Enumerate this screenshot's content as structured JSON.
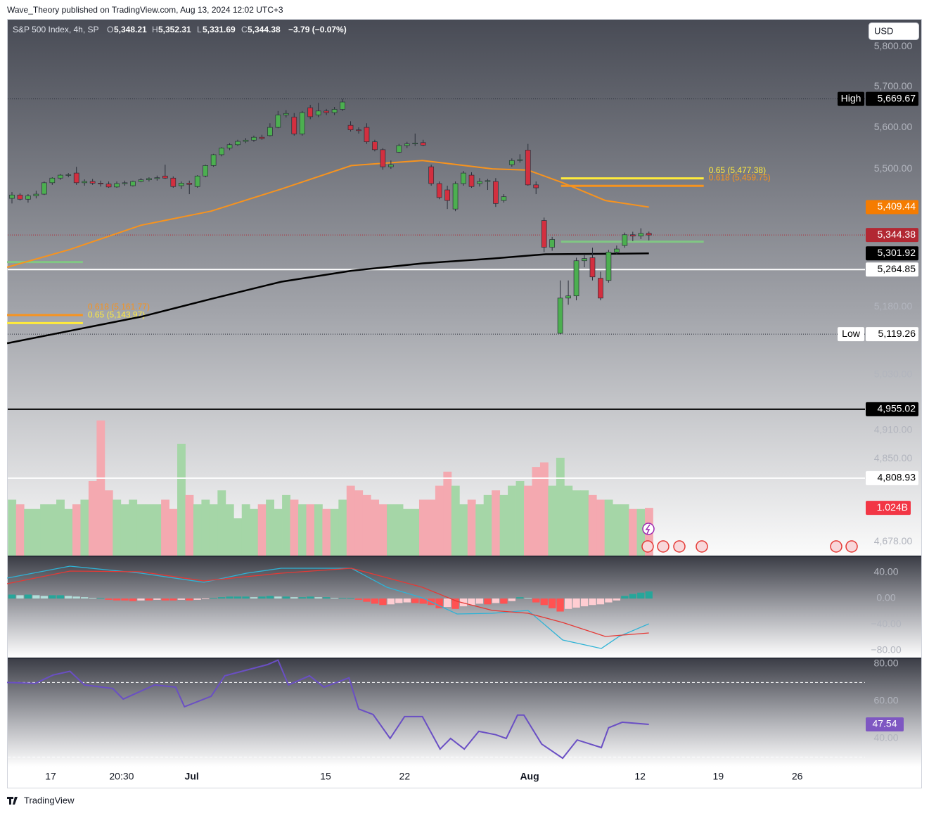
{
  "header": {
    "attribution": "Wave_Theory published on TradingView.com, Aug 13, 2024 12:02 UTC+3"
  },
  "footer": {
    "brand": "TradingView"
  },
  "currency_button": "USD",
  "chart_data": {
    "type": "candlestick",
    "title": "S&P 500 Index, 4h, SP",
    "legend": {
      "o": "O",
      "open": "5,348.21",
      "h": "H",
      "high": "5,352.31",
      "l": "L",
      "low": "5,331.69",
      "c": "C",
      "close": "5,344.38",
      "change": "−3.79 (−0.07%)"
    },
    "up_color": "#4caf50",
    "down_color": "#d32f3f",
    "wick_color": "#2a2e39",
    "xlim": [
      -0.61,
      105.8
    ],
    "xticks": [
      {
        "value": 4.8,
        "label": "17"
      },
      {
        "value": 13.6,
        "label": "20:30"
      },
      {
        "value": 22.3,
        "label": "Jul"
      },
      {
        "value": 38.9,
        "label": "15"
      },
      {
        "value": 48.7,
        "label": "22"
      },
      {
        "value": 64.2,
        "label": "Aug"
      },
      {
        "value": 77.9,
        "label": "12"
      },
      {
        "value": 87.6,
        "label": "19"
      },
      {
        "value": 97.4,
        "label": "26"
      }
    ],
    "ylim": [
      4650,
      5868
    ],
    "log_scale": true,
    "yticks": [
      {
        "value": 5800,
        "label": "5,800.00"
      },
      {
        "value": 5700,
        "label": "5,700.00"
      },
      {
        "value": 5600,
        "label": "5,600.00"
      },
      {
        "value": 5500,
        "label": "5,500.00"
      },
      {
        "value": 5180,
        "label": "5,180.00"
      },
      {
        "value": 5030,
        "label": "5,030.00"
      },
      {
        "value": 4910,
        "label": "4,910.00"
      },
      {
        "value": 4850,
        "label": "4,850.00"
      },
      {
        "value": 4678,
        "label": "4,678.00"
      }
    ],
    "candles": {
      "open": [
        5430,
        5438,
        5428,
        5436,
        5440,
        5467,
        5478,
        5485,
        5490,
        5467,
        5470,
        5466,
        5464,
        5457,
        5465,
        5460,
        5470,
        5474,
        5477,
        5483,
        5478,
        5460,
        5466,
        5458,
        5483,
        5508,
        5534,
        5550,
        5558,
        5566,
        5569,
        5576,
        5580,
        5600,
        5630,
        5625,
        5584,
        5648,
        5630,
        5640,
        5636,
        5644,
        5605,
        5594,
        5600,
        5565,
        5546,
        5505,
        5540,
        5556,
        5560,
        5563,
        5505,
        5465,
        5450,
        5405,
        5465,
        5485,
        5465,
        5470,
        5470,
        5425,
        5510,
        5520,
        5545,
        5462,
        5378,
        5316,
        5121,
        5200,
        5205,
        5285,
        5292,
        5245,
        5240,
        5305,
        5320,
        5345,
        5342,
        5348.21
      ],
      "high": [
        5445,
        5442,
        5440,
        5448,
        5470,
        5480,
        5488,
        5490,
        5505,
        5475,
        5476,
        5472,
        5470,
        5470,
        5472,
        5472,
        5478,
        5480,
        5484,
        5510,
        5482,
        5470,
        5472,
        5485,
        5510,
        5536,
        5552,
        5562,
        5570,
        5574,
        5580,
        5582,
        5610,
        5640,
        5642,
        5635,
        5640,
        5655,
        5660,
        5645,
        5650,
        5669.67,
        5615,
        5600,
        5610,
        5570,
        5550,
        5520,
        5560,
        5565,
        5585,
        5570,
        5510,
        5470,
        5460,
        5470,
        5495,
        5492,
        5478,
        5476,
        5478,
        5440,
        5525,
        5535,
        5560,
        5470,
        5385,
        5340,
        5240,
        5240,
        5292,
        5300,
        5315,
        5260,
        5310,
        5320,
        5350,
        5352,
        5360,
        5352.31
      ],
      "low": [
        5418,
        5425,
        5420,
        5430,
        5438,
        5462,
        5474,
        5480,
        5462,
        5460,
        5462,
        5458,
        5455,
        5455,
        5460,
        5458,
        5468,
        5470,
        5472,
        5476,
        5455,
        5452,
        5440,
        5455,
        5480,
        5505,
        5530,
        5545,
        5555,
        5562,
        5565,
        5570,
        5578,
        5598,
        5624,
        5580,
        5580,
        5620,
        5625,
        5630,
        5630,
        5640,
        5590,
        5585,
        5560,
        5542,
        5498,
        5500,
        5538,
        5550,
        5555,
        5555,
        5460,
        5428,
        5405,
        5400,
        5460,
        5455,
        5458,
        5450,
        5410,
        5420,
        5505,
        5515,
        5460,
        5440,
        5305,
        5308,
        5119.26,
        5185,
        5195,
        5270,
        5240,
        5195,
        5235,
        5300,
        5315,
        5330,
        5335,
        5331.69
      ],
      "close": [
        5438,
        5428,
        5436,
        5440,
        5467,
        5478,
        5485,
        5486,
        5467,
        5470,
        5466,
        5464,
        5457,
        5465,
        5467,
        5470,
        5474,
        5477,
        5479,
        5478,
        5458,
        5466,
        5463,
        5483,
        5508,
        5534,
        5550,
        5558,
        5566,
        5569,
        5576,
        5573,
        5600,
        5630,
        5634,
        5584,
        5636,
        5626,
        5640,
        5636,
        5644,
        5662,
        5594,
        5592,
        5565,
        5546,
        5505,
        5510,
        5556,
        5560,
        5562,
        5557,
        5465,
        5432,
        5425,
        5465,
        5490,
        5458,
        5470,
        5472,
        5418,
        5434,
        5520,
        5522,
        5462,
        5455,
        5316,
        5334,
        5200,
        5205,
        5285,
        5290,
        5248,
        5200,
        5305,
        5312,
        5345,
        5342,
        5348,
        5344.38
      ]
    },
    "overlays": [
      {
        "color": "#f7931e",
        "x": [
          -0.6,
          7.2,
          16.0,
          24.7,
          33.4,
          42.1,
          50.9,
          59.6,
          64.0,
          68.3,
          73.6,
          79
        ],
        "values": [
          5270,
          5311,
          5367,
          5400,
          5452,
          5508,
          5520,
          5500,
          5497,
          5467,
          5425,
          5409.44
        ]
      },
      {
        "color": "#000000",
        "x": [
          -0.6,
          16.0,
          24.7,
          33.4,
          42.1,
          50.9,
          59.6,
          66.2,
          79
        ],
        "values": [
          5099,
          5158,
          5198,
          5237,
          5262,
          5279,
          5290,
          5300,
          5301.92
        ]
      }
    ],
    "fib_levels": [
      {
        "value": 5477.38,
        "label": "0.65 (5,477.38)",
        "color": "#ffeb3b",
        "x": [
          68.1,
          85.8
        ]
      },
      {
        "value": 5459.75,
        "label": "0.618 (5,459.75)",
        "color": "#f7931e",
        "x": [
          68.1,
          85.8
        ]
      },
      {
        "value": 5329,
        "color": "#81c784",
        "x": [
          68.1,
          85.8
        ]
      },
      {
        "value": 5282,
        "color": "#81c784",
        "x": [
          -0.6,
          8.8
        ]
      },
      {
        "value": 5161.77,
        "label": "0.618 (5,161.77)",
        "color": "#f7931e",
        "x": [
          -0.6,
          8.8
        ]
      },
      {
        "value": 5143.97,
        "label": "0.65 (5,143.97)",
        "color": "#ffeb3b",
        "x": [
          -0.6,
          8.8
        ]
      }
    ],
    "price_labels": [
      {
        "value": 5669.67,
        "label": "5,669.67",
        "prefix": "High",
        "bg": "#000000",
        "fg": "#ffffff",
        "line": "dotted",
        "line_color": "#2a2e39"
      },
      {
        "value": 5409.44,
        "label": "5,409.44",
        "bg": "#f57c00",
        "fg": "#ffffff"
      },
      {
        "value": 5344.38,
        "label": "5,344.38",
        "bg": "#b22833",
        "fg": "#ffffff",
        "line": "dotted",
        "line_color": "#b22833"
      },
      {
        "value": 5301.92,
        "label": "5,301.92",
        "bg": "#000000",
        "fg": "#ffffff"
      },
      {
        "value": 5264.85,
        "label": "5,264.85",
        "bg": "#ffffff",
        "fg": "#000000",
        "line": "solid",
        "line_color": "#ffffff"
      },
      {
        "value": 5119.26,
        "label": "5,119.26",
        "prefix": "Low",
        "bg": "#ffffff",
        "fg": "#000000",
        "line": "dotted",
        "line_color": "#2a2e39"
      },
      {
        "value": 4955.02,
        "label": "4,955.02",
        "bg": "#000000",
        "fg": "#ffffff",
        "line": "solid",
        "line_color": "#000000"
      },
      {
        "value": 4808.93,
        "label": "4,808.93",
        "bg": "#ffffff",
        "fg": "#000000",
        "line": "solid",
        "line_color": "#ffffff"
      }
    ],
    "volume": {
      "ylim": [
        0,
        11.5
      ],
      "up_color": "#a5d6a7",
      "down_color": "#f4a9b0",
      "values": [
        1.2,
        1.1,
        1.0,
        1.0,
        1.1,
        1.1,
        1.2,
        1.0,
        1.1,
        1.2,
        1.6,
        2.9,
        1.4,
        1.2,
        1.1,
        1.2,
        1.1,
        1.1,
        1.1,
        1.2,
        1.0,
        2.4,
        1.3,
        1.1,
        1.2,
        1.1,
        1.4,
        1.1,
        0.8,
        1.1,
        1.0,
        1.1,
        1.2,
        1.0,
        1.3,
        1.2,
        1.1,
        1.1,
        1.1,
        1.0,
        1.0,
        1.2,
        1.5,
        1.4,
        1.3,
        1.2,
        1.1,
        1.1,
        1.1,
        1.0,
        1.0,
        1.2,
        1.2,
        1.5,
        1.8,
        1.5,
        1.1,
        1.2,
        1.1,
        1.3,
        1.4,
        1.3,
        1.5,
        1.6,
        1.5,
        1.9,
        2.0,
        1.5,
        2.1,
        1.5,
        1.4,
        1.4,
        1.3,
        1.2,
        1.2,
        1.1,
        1.1,
        1.0,
        1.0,
        1.024
      ],
      "last": {
        "value": 1.024,
        "label": "1.024B",
        "bg": "#f23645",
        "fg": "#ffffff"
      }
    },
    "macd": {
      "ylim": [
        -90.8,
        63.8
      ],
      "yticks": [
        {
          "value": 40,
          "label": "40.00"
        },
        {
          "value": 0,
          "label": "0.00"
        },
        {
          "value": -40,
          "label": "−40.00"
        },
        {
          "value": -80,
          "label": "−80.00"
        }
      ],
      "histogram": [
        6,
        5,
        6,
        5,
        4,
        5,
        5,
        4,
        3,
        2,
        1,
        1,
        -2,
        -3,
        -3,
        -4,
        -3,
        -3,
        -2,
        -3,
        -3,
        -2,
        -3,
        -2,
        -1,
        1,
        2,
        3,
        3,
        3,
        2,
        3,
        4,
        3,
        3,
        2,
        2,
        3,
        2,
        2,
        1,
        1,
        1,
        -2,
        -5,
        -8,
        -10,
        -9,
        -7,
        -6,
        -7,
        -8,
        -10,
        -15,
        -13,
        -16,
        -12,
        -10,
        -8,
        -9,
        -7,
        -8,
        -4,
        2,
        1,
        -6,
        -10,
        -15,
        -20,
        -16,
        -14,
        -12,
        -10,
        -9,
        -6,
        -3,
        4,
        7,
        9,
        11
      ],
      "hist_colors": [
        "#26a69a",
        "#b2dfdb",
        "#ff5252",
        "#ffcdd2"
      ],
      "lines": [
        {
          "color": "#2eb3d6",
          "x": [
            -0.6,
            7.2,
            16.0,
            23.8,
            29.1,
            33.4,
            42.1,
            46.5,
            50.9,
            55.2,
            59.6,
            64.0,
            68.3,
            73.1,
            75.3,
            79
          ],
          "values": [
            31.4,
            49.7,
            38.9,
            24.9,
            38.9,
            46.5,
            46.5,
            17.3,
            1.1,
            -23.8,
            -22.7,
            -18.4,
            -63.8,
            -76.8,
            -58.4,
            -38.9
          ]
        },
        {
          "color": "#e53935",
          "x": [
            -0.6,
            7.2,
            16.0,
            23.8,
            33.4,
            42.1,
            50.9,
            55.2,
            59.6,
            64.0,
            68.3,
            73.6,
            79
          ],
          "values": [
            22.7,
            42.2,
            41.1,
            27,
            38.9,
            46.5,
            17.3,
            -4.3,
            -18.4,
            -22.7,
            -36.8,
            -58.4,
            -53
          ]
        }
      ]
    },
    "rsi": {
      "ylim": [
        24.9,
        82.6
      ],
      "color": "#6a4fc4",
      "yticks": [
        {
          "value": 80,
          "label": "80.00"
        },
        {
          "value": 60,
          "label": "60.00"
        },
        {
          "value": 40,
          "label": "40.00"
        }
      ],
      "bands": [
        70,
        30
      ],
      "x": [
        -0.6,
        2.9,
        5.1,
        7.2,
        9.0,
        12.5,
        13.8,
        17.7,
        20.3,
        21.4,
        24.7,
        26.4,
        31.7,
        33.0,
        34.3,
        36.9,
        38.7,
        41.8,
        43.0,
        44.8,
        46.9,
        48.7,
        50.9,
        53.1,
        54.4,
        56.1,
        57.9,
        60.0,
        61.3,
        62.7,
        63.5,
        65.7,
        68.3,
        70.1,
        73.1,
        74.0,
        75.7,
        79
      ],
      "values": [
        70,
        69.5,
        74,
        76,
        68.7,
        66.8,
        61.1,
        68.7,
        67.5,
        57,
        62.6,
        73.6,
        79.6,
        82,
        68.7,
        73.6,
        67.5,
        72.5,
        55.8,
        52.8,
        40,
        51.7,
        51.7,
        34.3,
        40,
        34.3,
        43.8,
        42,
        40,
        52.5,
        52.5,
        37,
        29.4,
        39.2,
        35.1,
        45.7,
        48.7,
        47.54
      ],
      "last": {
        "value": 47.54,
        "label": "47.54",
        "bg": "#7e57c2",
        "fg": "#ffffff"
      }
    }
  }
}
